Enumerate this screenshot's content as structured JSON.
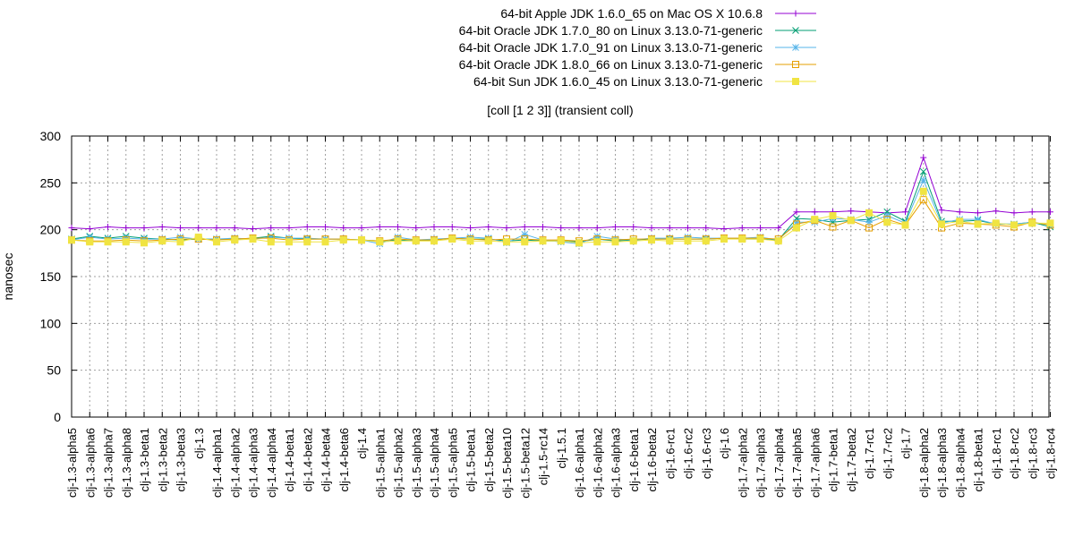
{
  "chart_data": {
    "type": "line",
    "title": "[coll [1 2 3]] (transient coll)",
    "xlabel": "",
    "ylabel": "nanosec",
    "ylim": [
      0,
      300
    ],
    "yticks": [
      0,
      50,
      100,
      150,
      200,
      250,
      300
    ],
    "grid": true,
    "legend_position": "top-right",
    "categories": [
      "clj-1.3-alpha5",
      "clj-1.3-alpha6",
      "clj-1.3-alpha7",
      "clj-1.3-alpha8",
      "clj-1.3-beta1",
      "clj-1.3-beta2",
      "clj-1.3-beta3",
      "clj-1.3",
      "clj-1.4-alpha1",
      "clj-1.4-alpha2",
      "clj-1.4-alpha3",
      "clj-1.4-alpha4",
      "clj-1.4-beta1",
      "clj-1.4-beta2",
      "clj-1.4-beta4",
      "clj-1.4-beta6",
      "clj-1.4",
      "clj-1.5-alpha1",
      "clj-1.5-alpha2",
      "clj-1.5-alpha3",
      "clj-1.5-alpha4",
      "clj-1.5-alpha5",
      "clj-1.5-beta1",
      "clj-1.5-beta2",
      "clj-1.5-beta10",
      "clj-1.5-beta12",
      "clj-1.5-rc14",
      "clj-1.5.1",
      "clj-1.6-alpha1",
      "clj-1.6-alpha2",
      "clj-1.6-alpha3",
      "clj-1.6-beta1",
      "clj-1.6-beta2",
      "clj-1.6-rc1",
      "clj-1.6-rc2",
      "clj-1.6-rc3",
      "clj-1.6",
      "clj-1.7-alpha2",
      "clj-1.7-alpha3",
      "clj-1.7-alpha4",
      "clj-1.7-alpha5",
      "clj-1.7-alpha6",
      "clj-1.7-beta1",
      "clj-1.7-beta2",
      "clj-1.7-rc1",
      "clj-1.7-rc2",
      "clj-1.7",
      "clj-1.8-alpha2",
      "clj-1.8-alpha3",
      "clj-1.8-alpha4",
      "clj-1.8-beta1",
      "clj-1.8-rc1",
      "clj-1.8-rc2",
      "clj-1.8-rc3",
      "clj-1.8-rc4"
    ],
    "series": [
      {
        "name": "64-bit Apple JDK 1.6.0_65 on Mac OS X 10.6.8",
        "color": "#9400d3",
        "marker": "plus",
        "values": [
          202,
          201,
          203,
          202,
          202,
          203,
          202,
          202,
          202,
          202,
          201,
          202,
          202,
          203,
          203,
          202,
          202,
          203,
          203,
          202,
          203,
          203,
          202,
          203,
          202,
          203,
          203,
          202,
          202,
          202,
          203,
          203,
          202,
          202,
          202,
          202,
          201,
          202,
          202,
          202,
          219,
          219,
          219,
          220,
          219,
          218,
          219,
          277,
          221,
          219,
          218,
          220,
          218,
          219,
          219
        ]
      },
      {
        "name": "64-bit Oracle JDK 1.7.0_80 on Linux 3.13.0-71-generic",
        "color": "#009e73",
        "marker": "x",
        "values": [
          190,
          193,
          191,
          193,
          191,
          190,
          189,
          190,
          190,
          190,
          191,
          193,
          191,
          190,
          190,
          190,
          189,
          188,
          189,
          188,
          189,
          191,
          190,
          190,
          188,
          189,
          188,
          188,
          187,
          190,
          188,
          189,
          190,
          190,
          190,
          190,
          191,
          190,
          190,
          189,
          212,
          211,
          208,
          210,
          211,
          219,
          209,
          262,
          209,
          209,
          210,
          206,
          206,
          208,
          203
        ]
      },
      {
        "name": "64-bit Oracle JDK 1.7.0_91 on Linux 3.13.0-71-generic",
        "color": "#56b4e9",
        "marker": "star",
        "values": [
          189,
          192,
          190,
          191,
          190,
          190,
          192,
          190,
          190,
          191,
          190,
          192,
          191,
          191,
          190,
          190,
          189,
          185,
          192,
          189,
          190,
          191,
          192,
          191,
          186,
          195,
          189,
          187,
          185,
          193,
          190,
          189,
          191,
          191,
          192,
          191,
          191,
          191,
          192,
          189,
          208,
          208,
          212,
          211,
          208,
          215,
          207,
          253,
          207,
          211,
          211,
          206,
          206,
          208,
          205
        ]
      },
      {
        "name": "64-bit Oracle JDK 1.8.0_66 on Linux 3.13.0-71-generic",
        "color": "#e69f00",
        "marker": "square",
        "values": [
          189,
          188,
          188,
          189,
          188,
          189,
          190,
          190,
          189,
          190,
          191,
          191,
          189,
          190,
          190,
          190,
          189,
          188,
          190,
          189,
          189,
          191,
          190,
          189,
          190,
          190,
          189,
          189,
          188,
          190,
          189,
          190,
          190,
          190,
          190,
          190,
          191,
          191,
          191,
          190,
          206,
          210,
          203,
          210,
          202,
          211,
          205,
          232,
          202,
          207,
          206,
          205,
          203,
          208,
          205
        ]
      },
      {
        "name": "64-bit Sun JDK 1.6.0_45 on Linux 3.13.0-71-generic",
        "color": "#f0e442",
        "marker": "filled-square",
        "values": [
          189,
          187,
          187,
          187,
          186,
          188,
          187,
          192,
          187,
          189,
          190,
          187,
          187,
          187,
          187,
          189,
          189,
          187,
          188,
          188,
          188,
          190,
          188,
          188,
          187,
          187,
          188,
          188,
          186,
          187,
          187,
          188,
          189,
          188,
          188,
          188,
          190,
          190,
          190,
          188,
          202,
          211,
          215,
          210,
          218,
          208,
          205,
          241,
          206,
          209,
          206,
          207,
          205,
          207,
          207
        ]
      }
    ]
  }
}
